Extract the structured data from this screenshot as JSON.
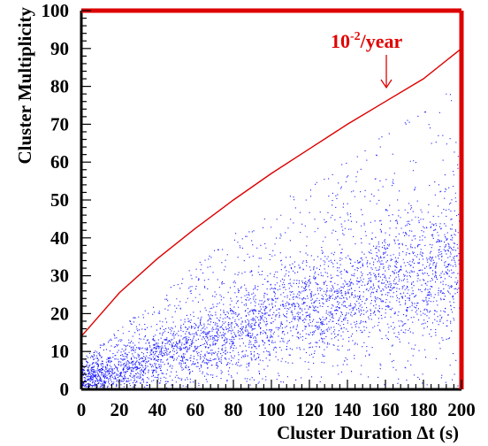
{
  "chart_data": {
    "type": "scatter",
    "title": "",
    "xlabel": "Cluster Duration Δt (s)",
    "ylabel": "Cluster Multiplicity",
    "xlim": [
      0,
      200
    ],
    "ylim": [
      0,
      100
    ],
    "xticks": [
      0,
      20,
      40,
      60,
      80,
      100,
      120,
      140,
      160,
      180,
      200
    ],
    "yticks": [
      0,
      10,
      20,
      30,
      40,
      50,
      60,
      70,
      80,
      90,
      100
    ],
    "xtick_labels": [
      "0",
      "20",
      "40",
      "60",
      "80",
      "100",
      "120",
      "140",
      "160",
      "180",
      "200"
    ],
    "ytick_labels": [
      "0",
      "10",
      "20",
      "30",
      "40",
      "50",
      "60",
      "70",
      "80",
      "90",
      "100"
    ],
    "grid": false,
    "colors": {
      "points": "#1a1aff",
      "curve": "#dd0000",
      "frame": "#dd0000",
      "axes": "#000000"
    },
    "series": [
      {
        "kind": "points",
        "description_of_distribution": "dense band rising from ~3 at x=0 to ~34 at x=200, spreading up to ~80 near x=200",
        "approx_center": [
          [
            0,
            3
          ],
          [
            20,
            5
          ],
          [
            40,
            9
          ],
          [
            60,
            12
          ],
          [
            80,
            15
          ],
          [
            100,
            19
          ],
          [
            120,
            22
          ],
          [
            140,
            25
          ],
          [
            160,
            28
          ],
          [
            180,
            31
          ],
          [
            200,
            34
          ]
        ],
        "approx_upper_envelope": [
          [
            0,
            8
          ],
          [
            20,
            16
          ],
          [
            40,
            25
          ],
          [
            60,
            33
          ],
          [
            80,
            41
          ],
          [
            100,
            48
          ],
          [
            120,
            55
          ],
          [
            140,
            61
          ],
          [
            160,
            68
          ],
          [
            180,
            75
          ],
          [
            200,
            81
          ]
        ]
      },
      {
        "kind": "line",
        "x": [
          0,
          20,
          40,
          60,
          80,
          100,
          120,
          140,
          160,
          180,
          200
        ],
        "y": [
          14,
          25.5,
          34.5,
          42.5,
          50,
          57,
          63.5,
          70,
          76,
          82,
          90
        ]
      }
    ],
    "annotations": [
      {
        "text": "10",
        "superscript": "-2",
        "suffix": "/year",
        "x": 160,
        "y": 90,
        "arrow_to": [
          160,
          80
        ]
      }
    ]
  }
}
